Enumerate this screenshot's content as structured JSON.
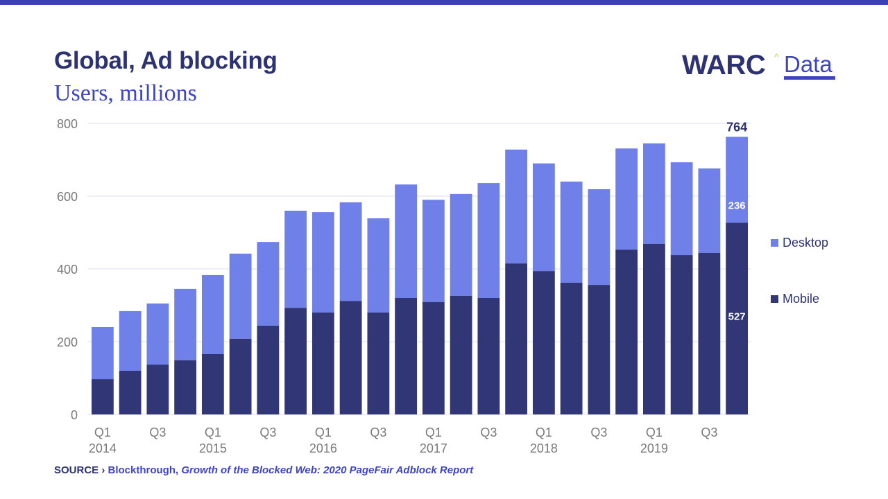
{
  "header": {
    "title": "Global, Ad blocking",
    "subtitle": "Users, millions"
  },
  "logo": {
    "brand": "WARC",
    "caret": "^",
    "product": "Data"
  },
  "colors": {
    "top_bar": "#3d40b5",
    "desktop": "#6f80e8",
    "mobile": "#313677",
    "title": "#2d3272",
    "accent": "#3d45c0",
    "grid": "#dcdcef",
    "axis_text": "#7a7a7a"
  },
  "source": {
    "prefix": "SOURCE ›",
    "name": "Blockthrough,",
    "title": "Growth of the Blocked Web: 2020 PageFair Adblock Report"
  },
  "chart_data": {
    "type": "bar",
    "stacked": true,
    "title": "Global, Ad blocking",
    "subtitle": "Users, millions",
    "xlabel": "",
    "ylabel": "Users, millions",
    "ylim": [
      0,
      800
    ],
    "yticks": [
      0,
      200,
      400,
      600,
      800
    ],
    "grid": true,
    "legend_position": "right",
    "categories": [
      "Q1 2014",
      "Q2 2014",
      "Q3 2014",
      "Q4 2014",
      "Q1 2015",
      "Q2 2015",
      "Q3 2015",
      "Q4 2015",
      "Q1 2016",
      "Q2 2016",
      "Q3 2016",
      "Q4 2016",
      "Q1 2017",
      "Q2 2017",
      "Q3 2017",
      "Q4 2017",
      "Q1 2018",
      "Q2 2018",
      "Q3 2018",
      "Q4 2018",
      "Q1 2019",
      "Q2 2019",
      "Q3 2019",
      "Q4 2019"
    ],
    "xtick_labels": [
      {
        "index": 0,
        "line1": "Q1",
        "line2": "2014"
      },
      {
        "index": 2,
        "line1": "Q3",
        "line2": ""
      },
      {
        "index": 4,
        "line1": "Q1",
        "line2": "2015"
      },
      {
        "index": 6,
        "line1": "Q3",
        "line2": ""
      },
      {
        "index": 8,
        "line1": "Q1",
        "line2": "2016"
      },
      {
        "index": 10,
        "line1": "Q3",
        "line2": ""
      },
      {
        "index": 12,
        "line1": "Q1",
        "line2": "2017"
      },
      {
        "index": 14,
        "line1": "Q3",
        "line2": ""
      },
      {
        "index": 16,
        "line1": "Q1",
        "line2": "2018"
      },
      {
        "index": 18,
        "line1": "Q3",
        "line2": ""
      },
      {
        "index": 20,
        "line1": "Q1",
        "line2": "2019"
      },
      {
        "index": 22,
        "line1": "Q3",
        "line2": ""
      }
    ],
    "series": [
      {
        "name": "Mobile",
        "color": "#313677",
        "values": [
          97,
          120,
          137,
          149,
          166,
          208,
          244,
          293,
          280,
          312,
          280,
          320,
          309,
          326,
          320,
          415,
          394,
          362,
          356,
          453,
          469,
          438,
          444,
          527
        ]
      },
      {
        "name": "Desktop",
        "color": "#6f80e8",
        "values": [
          143,
          164,
          168,
          196,
          217,
          234,
          230,
          267,
          276,
          271,
          259,
          312,
          281,
          280,
          316,
          313,
          296,
          278,
          263,
          278,
          276,
          255,
          232,
          236
        ]
      }
    ],
    "annotations": [
      {
        "index": 23,
        "series": "Desktop",
        "label": "236"
      },
      {
        "index": 23,
        "series": "Mobile",
        "label": "527"
      },
      {
        "index": 23,
        "series": "total",
        "label": "764"
      }
    ],
    "legend": [
      {
        "name": "Desktop",
        "color": "#6f80e8"
      },
      {
        "name": "Mobile",
        "color": "#313677"
      }
    ]
  }
}
